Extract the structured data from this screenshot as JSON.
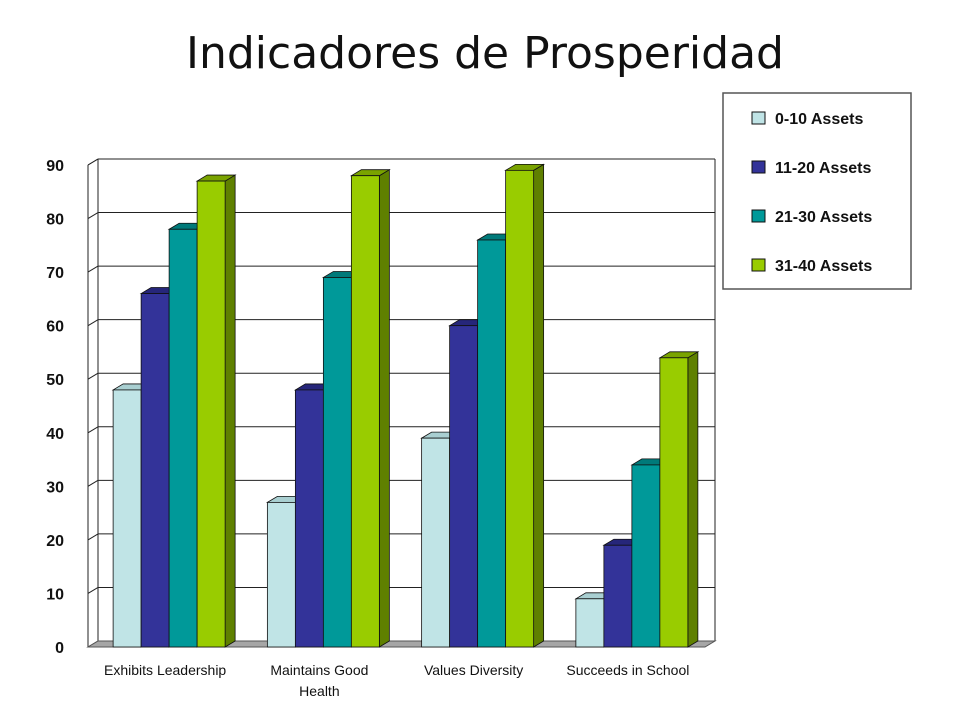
{
  "title": "Indicadores de Prosperidad",
  "chart_data": {
    "type": "bar",
    "categories": [
      [
        "Exhibits Leadership"
      ],
      [
        "Maintains Good",
        "Health"
      ],
      [
        "Values Diversity"
      ],
      [
        "Succeeds in School"
      ]
    ],
    "series": [
      {
        "name": "0-10 Assets",
        "values": [
          48,
          27,
          39,
          9
        ],
        "color": "#c0e4e6",
        "side": "#8fb6b8",
        "top": "#a9cfd1"
      },
      {
        "name": "11-20 Assets",
        "values": [
          66,
          48,
          60,
          19
        ],
        "color": "#333399",
        "side": "#1f1f66",
        "top": "#26267a"
      },
      {
        "name": "21-30 Assets",
        "values": [
          78,
          69,
          76,
          34
        ],
        "color": "#009999",
        "side": "#006666",
        "top": "#007a7a"
      },
      {
        "name": "31-40 Assets",
        "values": [
          87,
          88,
          89,
          54
        ],
        "color": "#99cc00",
        "side": "#5f8000",
        "top": "#7aa300"
      }
    ],
    "ylim": [
      0,
      90
    ],
    "yticks": [
      0,
      10,
      20,
      30,
      40,
      50,
      60,
      70,
      80,
      90
    ],
    "grid": true,
    "legend_position": "top-right"
  }
}
